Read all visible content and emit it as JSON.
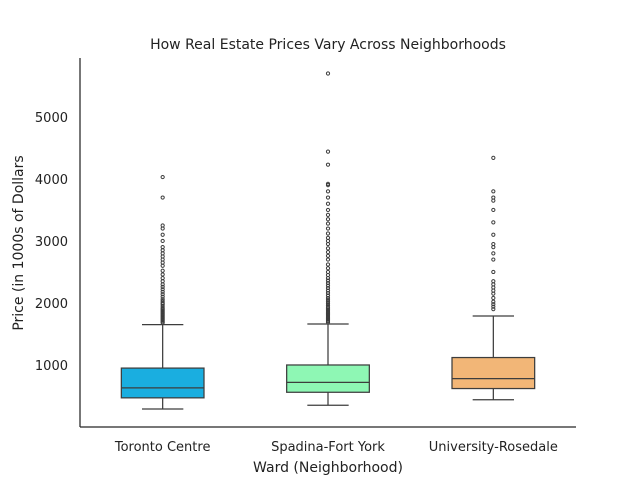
{
  "chart_data": {
    "type": "box",
    "title": "How Real Estate Prices Vary Across Neighborhoods",
    "xlabel": "Ward (Neighborhood)",
    "ylabel": "Price (in 1000s of Dollars",
    "ylim": [
      0,
      5950
    ],
    "yticks": [
      1000,
      2000,
      3000,
      4000,
      5000
    ],
    "grid": false,
    "categories": [
      "Toronto Centre",
      "Spadina-Fort York",
      "University-Rosedale"
    ],
    "colors": [
      "#1aaee0",
      "#8ef7b4",
      "#f2b677"
    ],
    "boxes": [
      {
        "name": "Toronto Centre",
        "whisker_low": 290,
        "q1": 470,
        "median": 630,
        "q3": 950,
        "whisker_high": 1650,
        "outliers": [
          1680,
          1700,
          1720,
          1740,
          1760,
          1780,
          1800,
          1820,
          1840,
          1860,
          1880,
          1900,
          1920,
          1950,
          1980,
          2000,
          2030,
          2060,
          2100,
          2140,
          2180,
          2220,
          2260,
          2300,
          2350,
          2400,
          2460,
          2520,
          2600,
          2650,
          2700,
          2750,
          2800,
          2850,
          2900,
          3000,
          3100,
          3200,
          3250,
          3700,
          4030
        ]
      },
      {
        "name": "Spadina-Fort York",
        "whisker_low": 350,
        "q1": 560,
        "median": 720,
        "q3": 1000,
        "whisker_high": 1660,
        "outliers": [
          1690,
          1710,
          1730,
          1750,
          1770,
          1790,
          1810,
          1830,
          1850,
          1870,
          1890,
          1910,
          1930,
          1960,
          1990,
          2020,
          2050,
          2080,
          2120,
          2160,
          2200,
          2240,
          2280,
          2320,
          2360,
          2400,
          2450,
          2500,
          2560,
          2620,
          2700,
          2760,
          2820,
          2880,
          2950,
          3000,
          3050,
          3120,
          3200,
          3280,
          3350,
          3420,
          3500,
          3600,
          3700,
          3800,
          3900,
          3920,
          4230,
          4440,
          5700
        ]
      },
      {
        "name": "University-Rosedale",
        "whisker_low": 440,
        "q1": 620,
        "median": 780,
        "q3": 1120,
        "whisker_high": 1790,
        "outliers": [
          1900,
          1940,
          1980,
          2020,
          2080,
          2150,
          2200,
          2250,
          2300,
          2350,
          2500,
          2700,
          2800,
          2900,
          2950,
          3100,
          3300,
          3500,
          3650,
          3700,
          3800,
          4340
        ]
      }
    ]
  }
}
